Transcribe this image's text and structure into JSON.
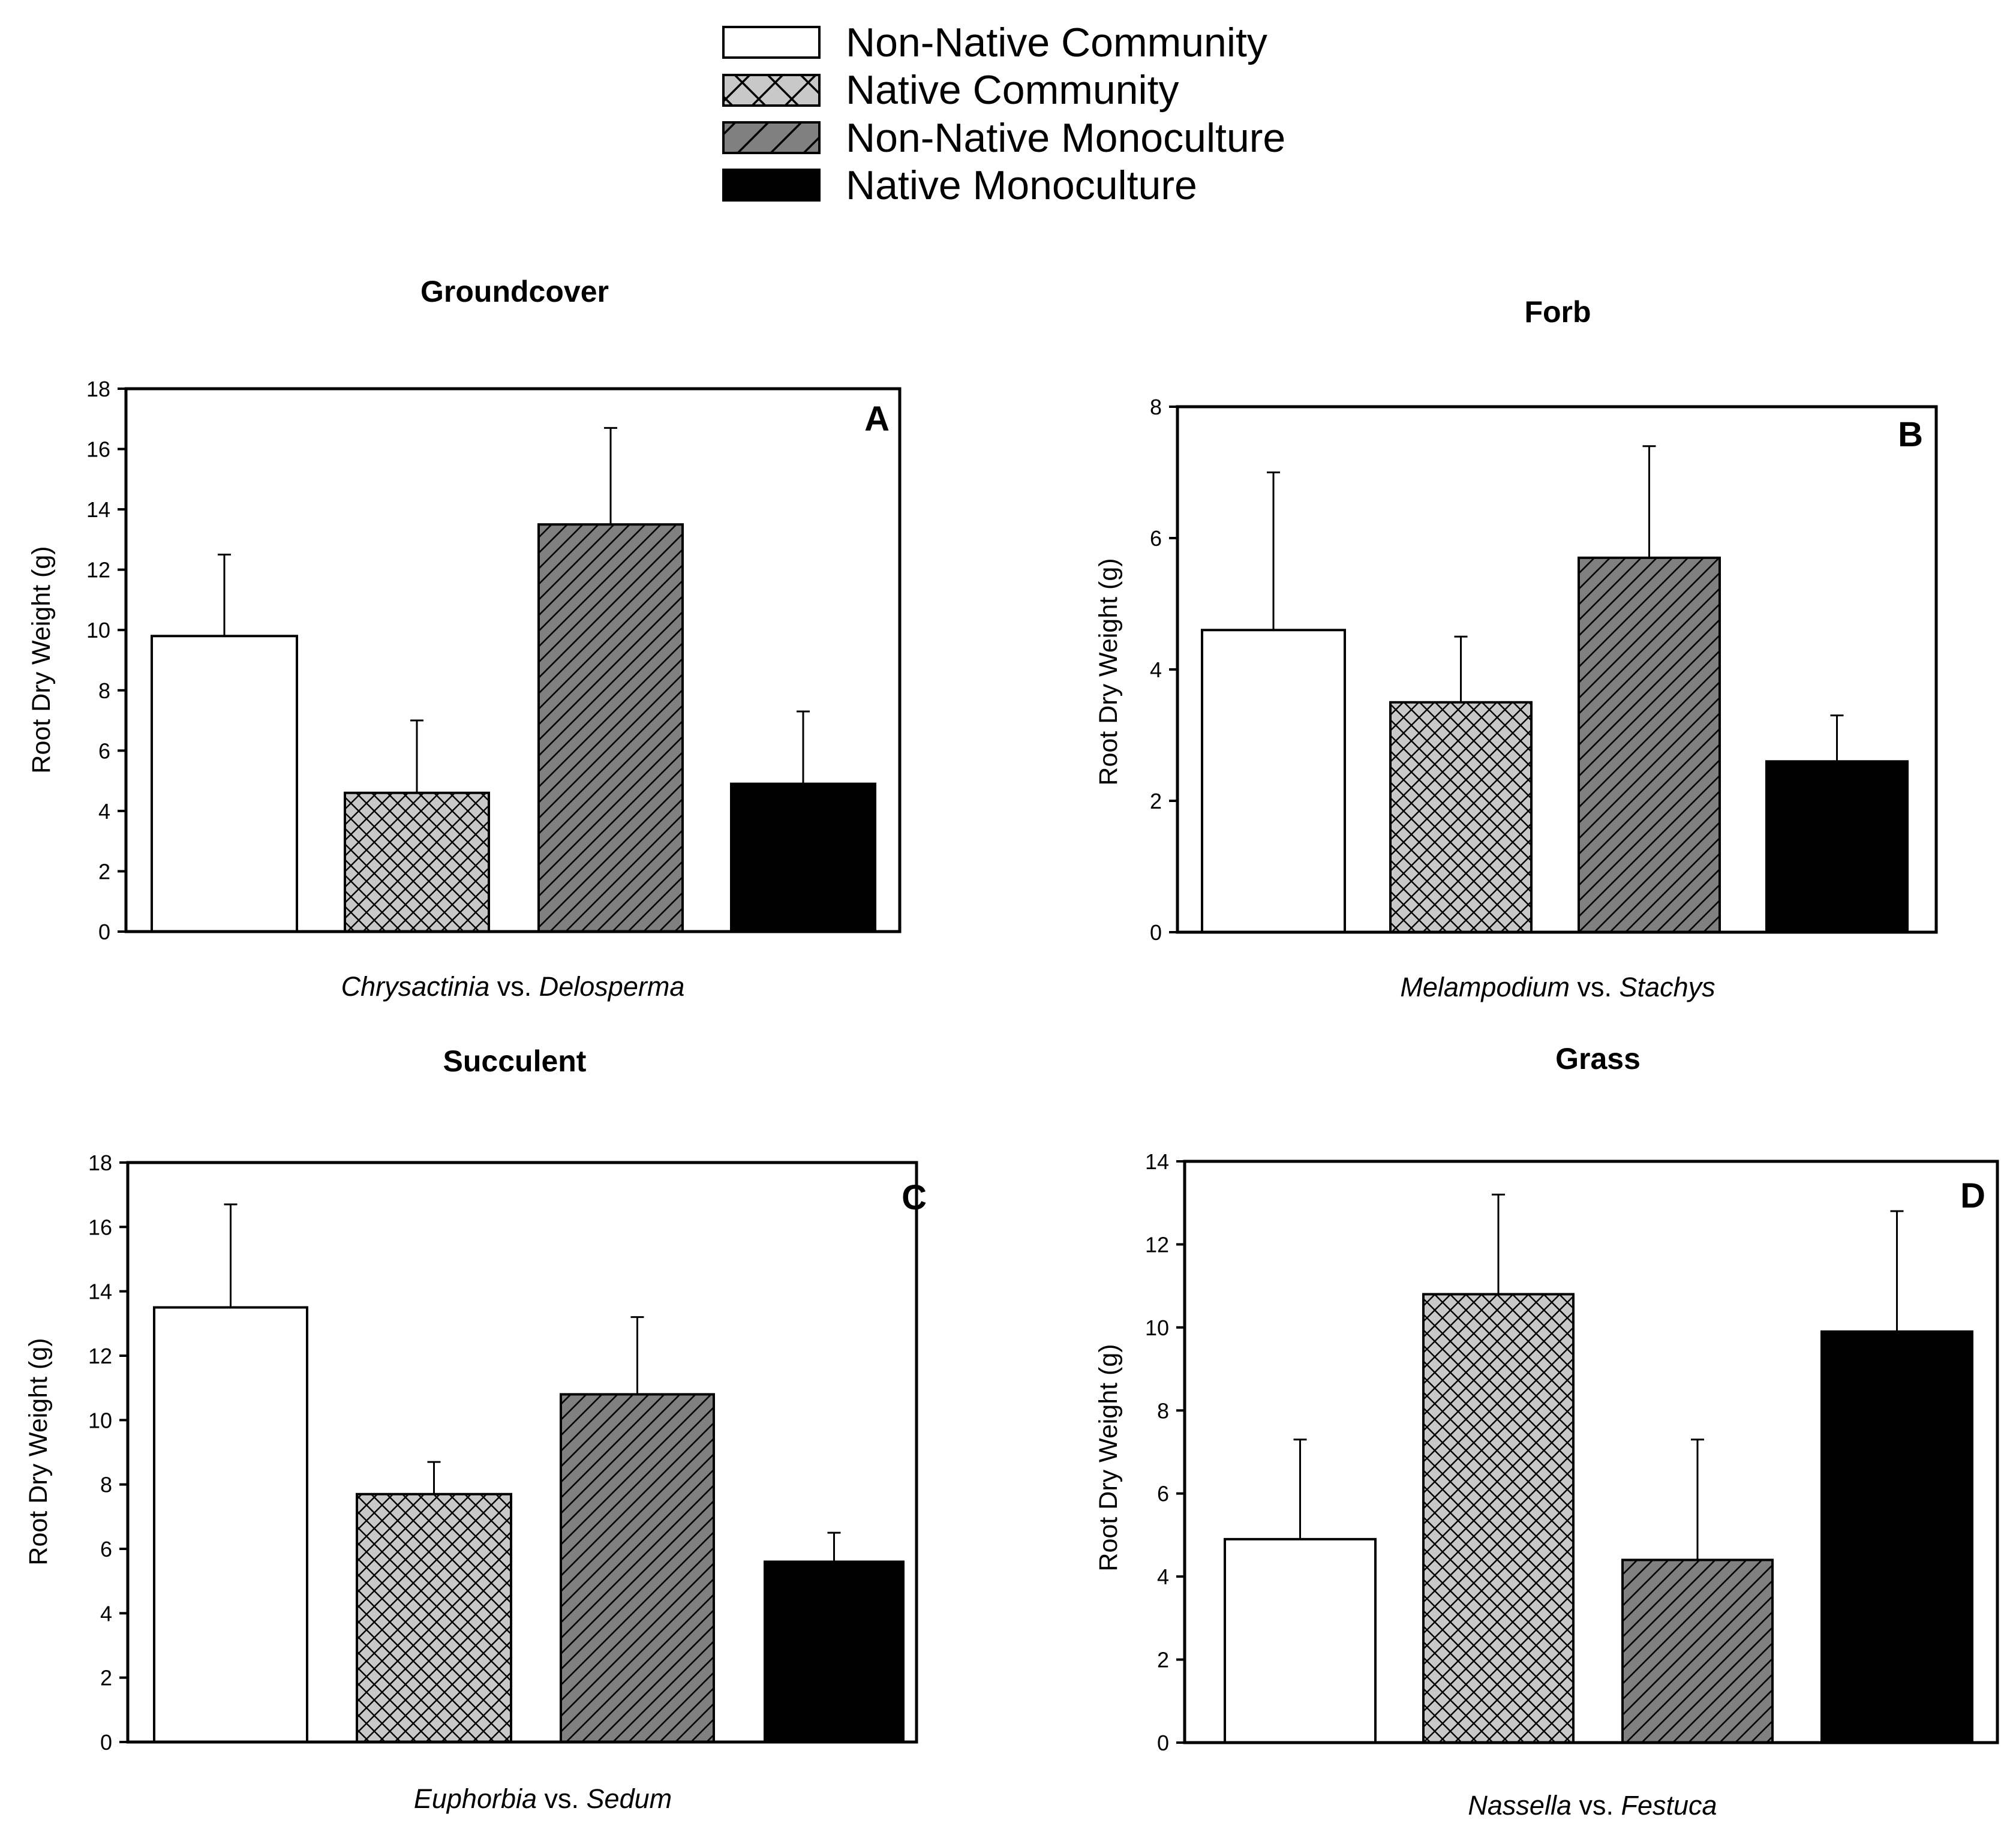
{
  "legend": {
    "entries": [
      {
        "label": "Non-Native Community",
        "fill": "#ffffff",
        "pattern": "none"
      },
      {
        "label": "Native Community",
        "fill": "#c8c8c8",
        "pattern": "crosshatch"
      },
      {
        "label": "Non-Native Monoculture",
        "fill": "#808080",
        "pattern": "diagonal"
      },
      {
        "label": "Native Monoculture",
        "fill": "#000000",
        "pattern": "none"
      }
    ]
  },
  "chart_data": [
    {
      "type": "bar",
      "panel": "A",
      "title": "Groundcover",
      "ylabel": "Root Dry Weight (g)",
      "xlabel": {
        "genus1": "Chrysactinia",
        "vs": " vs. ",
        "genus2": "Delosperma"
      },
      "ylim": [
        0,
        18
      ],
      "yticks": [
        0,
        2,
        4,
        6,
        8,
        10,
        12,
        14,
        16,
        18
      ],
      "values": [
        9.8,
        4.6,
        13.5,
        4.9
      ],
      "errors": [
        2.7,
        2.4,
        3.2,
        2.4
      ]
    },
    {
      "type": "bar",
      "panel": "B",
      "title": "Forb",
      "ylabel": "Root Dry Weight (g)",
      "xlabel": {
        "genus1": "Melampodium",
        "vs": " vs. ",
        "genus2": "Stachys"
      },
      "ylim": [
        0,
        8
      ],
      "yticks": [
        0,
        2,
        4,
        6,
        8
      ],
      "values": [
        4.6,
        3.5,
        5.7,
        2.6
      ],
      "errors": [
        2.4,
        1.0,
        1.7,
        0.7
      ]
    },
    {
      "type": "bar",
      "panel": "C",
      "title": "Succulent",
      "ylabel": "Root Dry Weight (g)",
      "xlabel": {
        "genus1": "Euphorbia",
        "vs": " vs. ",
        "genus2": "Sedum"
      },
      "ylim": [
        0,
        18
      ],
      "yticks": [
        0,
        2,
        4,
        6,
        8,
        10,
        12,
        14,
        16,
        18
      ],
      "values": [
        13.5,
        7.7,
        10.8,
        5.6
      ],
      "errors": [
        3.2,
        1.0,
        2.4,
        0.9
      ]
    },
    {
      "type": "bar",
      "panel": "D",
      "title": "Grass",
      "ylabel": "Root Dry Weight (g)",
      "xlabel": {
        "genus1": "Nassella",
        "vs": " vs. ",
        "genus2": "Festuca"
      },
      "ylim": [
        0,
        14
      ],
      "yticks": [
        0,
        2,
        4,
        6,
        8,
        10,
        12,
        14
      ],
      "values": [
        4.9,
        10.8,
        4.4,
        9.9
      ],
      "errors": [
        2.4,
        2.4,
        2.9,
        2.9
      ]
    }
  ]
}
